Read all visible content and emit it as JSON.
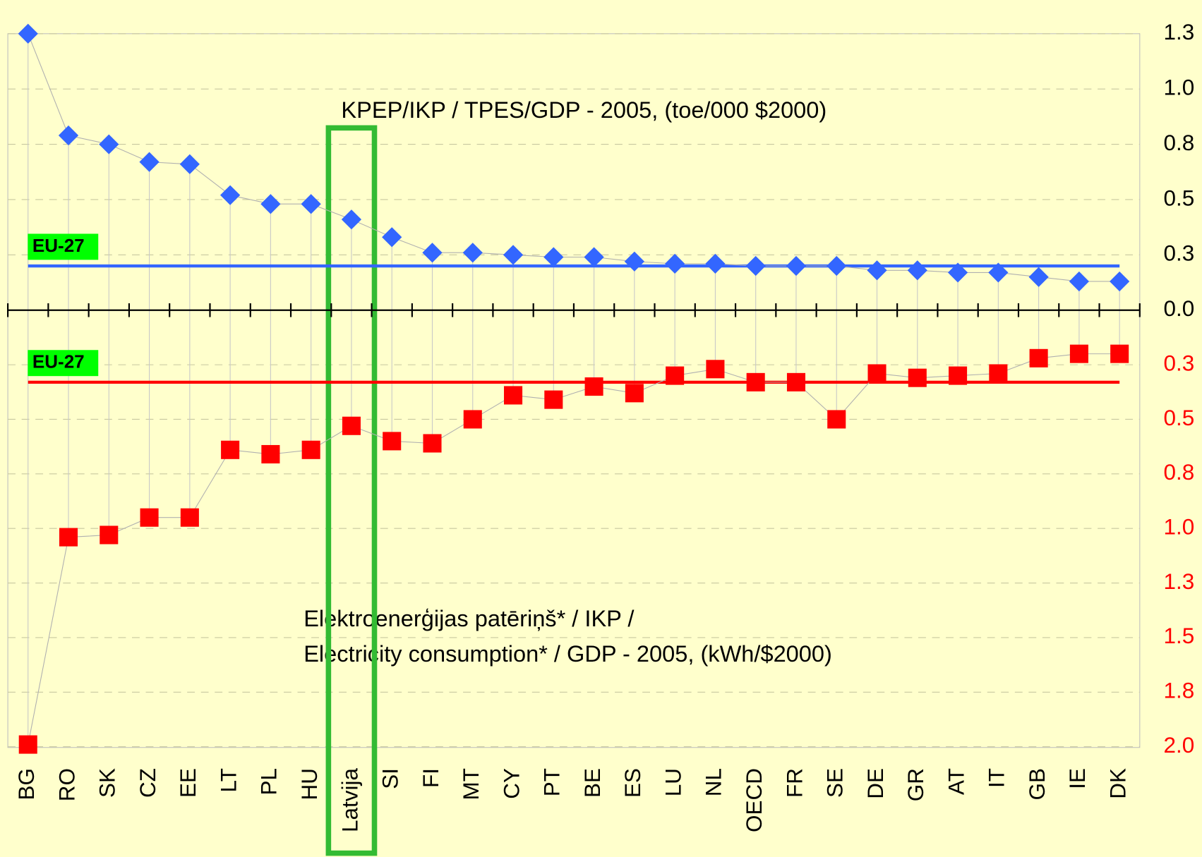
{
  "chart_data": {
    "type": "line",
    "annotations": [
      "KPEP/IKP / TPES/GDP - 2005, (toe/000 $2000)",
      "Elektroenerģijas patēriņš* / IKP /",
      "Electricity consumption* / GDP - 2005, (kWh/$2000)"
    ],
    "categories": [
      "BG",
      "RO",
      "SK",
      "CZ",
      "EE",
      "LT",
      "PL",
      "HU",
      "Latvija",
      "SI",
      "FI",
      "MT",
      "CY",
      "PT",
      "BE",
      "ES",
      "LU",
      "NL",
      "OECD",
      "FR",
      "SE",
      "DE",
      "GR",
      "AT",
      "IT",
      "GB",
      "IE",
      "DK"
    ],
    "highlight": "Latvija",
    "series": [
      {
        "name": "TPES/GDP",
        "color": "#3366ff",
        "marker": "diamond",
        "axis": "y",
        "values": [
          1.25,
          0.79,
          0.75,
          0.67,
          0.66,
          0.52,
          0.48,
          0.48,
          0.41,
          0.33,
          0.26,
          0.26,
          0.25,
          0.24,
          0.24,
          0.22,
          0.21,
          0.21,
          0.2,
          0.2,
          0.2,
          0.18,
          0.18,
          0.17,
          0.17,
          0.15,
          0.13,
          0.13
        ]
      },
      {
        "name": "Electricity/GDP",
        "color": "#ff0000",
        "marker": "square",
        "axis": "y2",
        "values": [
          1.99,
          1.04,
          1.03,
          0.95,
          0.95,
          0.64,
          0.66,
          0.64,
          0.53,
          0.6,
          0.61,
          0.5,
          0.39,
          0.41,
          0.35,
          0.38,
          0.3,
          0.27,
          0.33,
          0.33,
          0.5,
          0.29,
          0.31,
          0.3,
          0.29,
          0.22,
          0.2,
          0.2
        ]
      }
    ],
    "reference_lines": [
      {
        "label": "EU-27",
        "axis": "y",
        "value": 0.2,
        "color": "#3366ff"
      },
      {
        "label": "EU-27",
        "axis": "y2",
        "value": 0.33,
        "color": "#ff0000"
      }
    ],
    "ylim": [
      0,
      1.25
    ],
    "yticks": [
      {
        "value": 0,
        "label": "0.0"
      },
      {
        "value": 0.25,
        "label": "0.3"
      },
      {
        "value": 0.5,
        "label": "0.5"
      },
      {
        "value": 0.75,
        "label": "0.8"
      },
      {
        "value": 1.0,
        "label": "1.0"
      },
      {
        "value": 1.25,
        "label": "1.3"
      }
    ],
    "y2lim": [
      0,
      2.0
    ],
    "y2ticks": [
      {
        "value": 0.25,
        "label": "0.3"
      },
      {
        "value": 0.5,
        "label": "0.5"
      },
      {
        "value": 0.75,
        "label": "0.8"
      },
      {
        "value": 1.0,
        "label": "1.0"
      },
      {
        "value": 1.25,
        "label": "1.3"
      },
      {
        "value": 1.5,
        "label": "1.5"
      },
      {
        "value": 1.75,
        "label": "1.8"
      },
      {
        "value": 2.0,
        "label": "2.0"
      }
    ],
    "grid": true
  }
}
